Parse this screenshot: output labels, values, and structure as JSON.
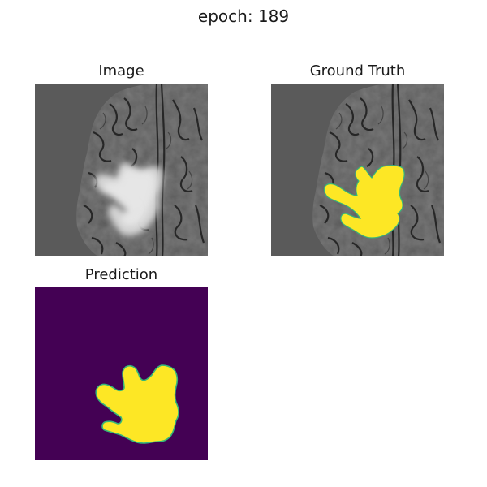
{
  "figure": {
    "title": "epoch: 189"
  },
  "panels": {
    "image": {
      "title": "Image"
    },
    "ground_truth": {
      "title": "Ground Truth"
    },
    "prediction": {
      "title": "Prediction"
    }
  },
  "colors": {
    "background_gray": "#5a5a5a",
    "mask_yellow": "#fde725",
    "mask_edge": "#35b779",
    "prediction_background": "#440154"
  }
}
